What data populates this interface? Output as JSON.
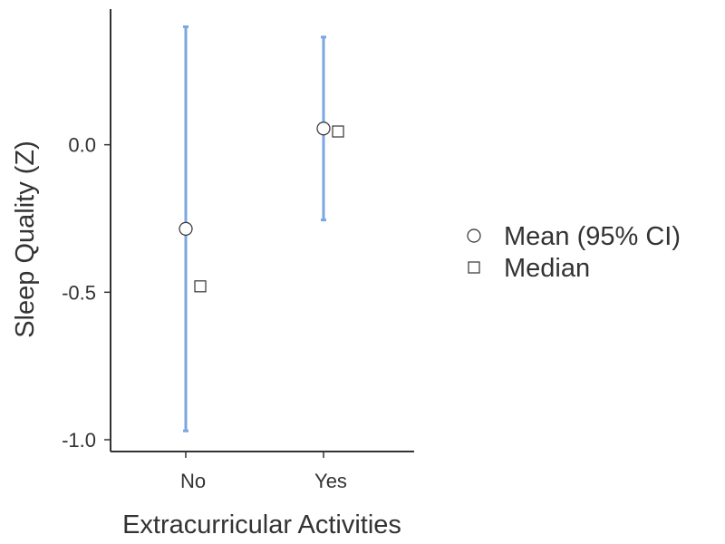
{
  "chart_data": {
    "type": "scatter",
    "xlabel": "Extracurricular Activities",
    "ylabel": "Sleep Quality (Z)",
    "categories": [
      "No",
      "Yes"
    ],
    "ylim": [
      -1.04,
      0.46
    ],
    "yticks": [
      0.0,
      -0.5,
      -1.0
    ],
    "ytick_labels": [
      "0.0",
      "-0.5",
      "-1.0"
    ],
    "grid": false,
    "legend_position": "right",
    "series": [
      {
        "name": "Mean (95% CI)",
        "marker": "circle",
        "values": [
          -0.285,
          0.055
        ],
        "ci_lower": [
          -0.97,
          -0.255
        ],
        "ci_upper": [
          0.4,
          0.365
        ]
      },
      {
        "name": "Median",
        "marker": "square",
        "values": [
          -0.48,
          0.045
        ]
      }
    ],
    "colors": {
      "errorbar": "#7ba7e0",
      "marker_edge": "#333333",
      "axis": "#333333"
    }
  }
}
